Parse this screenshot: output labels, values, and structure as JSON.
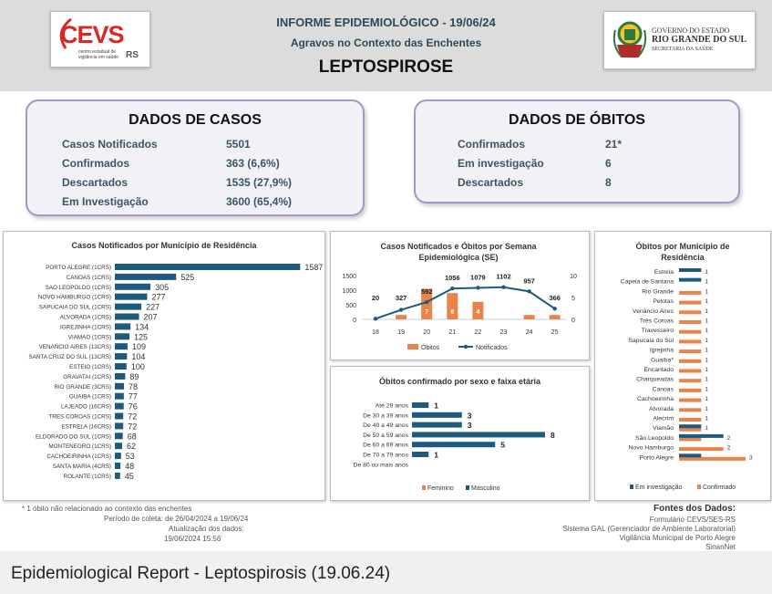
{
  "header": {
    "cevs_logo_text": "CEVS",
    "cevs_logo_sub": "centro estadual de vigilância em saúde",
    "cevs_logo_rs": "RS",
    "title_line1": "INFORME EPIDEMIOLÓGICO -  19/06/24",
    "title_line2": "Agravos no Contexto das Enchentes",
    "title_line3": "LEPTOSPIROSE",
    "rs_logo_line1": "GOVERNO DO ESTADO",
    "rs_logo_line2": "RIO GRANDE DO SUL",
    "rs_logo_line3": "SECRETARIA DA SAÚDE"
  },
  "casos": {
    "title": "DADOS DE CASOS",
    "rows": [
      {
        "label": "Casos Notificados",
        "value": "5501"
      },
      {
        "label": "Confirmados",
        "value": "363 (6,6%)"
      },
      {
        "label": "Descartados",
        "value": "1535 (27,9%)"
      },
      {
        "label": "Em Investigação",
        "value": "3600 (65,4%)"
      }
    ]
  },
  "obitos": {
    "title": "DADOS DE ÓBITOS",
    "rows": [
      {
        "label": "Confirmados",
        "value": "21*"
      },
      {
        "label": "Em investigação",
        "value": "6"
      },
      {
        "label": "Descartados",
        "value": "8"
      }
    ]
  },
  "colors": {
    "navy": "#1d5a7e",
    "orange": "#e8834a",
    "card_border": "#a896c4"
  },
  "chart_data": [
    {
      "type": "bar",
      "title": "Casos Notificados por Município de Residência",
      "orientation": "horizontal",
      "categories": [
        "PORTO ALEGRE (1CRS)",
        "CANOAS (1CRS)",
        "SAO LEOPOLDO (1CRS)",
        "NOVO HAMBURGO (1CRS)",
        "SAPUCAIA DO SUL (1CRS)",
        "ALVORADA (1CRS)",
        "IGREJINHA (1CRS)",
        "VIAMAO (1CRS)",
        "VENANCIO AIRES (13CRS)",
        "SANTA CRUZ DO SUL (13CRS)",
        "ESTEIO (1CRS)",
        "GRAVATAI (1CRS)",
        "RIO GRANDE (3CRS)",
        "GUAIBA (1CRS)",
        "LAJEADO (16CRS)",
        "TRES COROAS (1CRS)",
        "ESTRELA (16CRS)",
        "ELDORADO DO SUL (1CRS)",
        "MONTENEGRO (1CRS)",
        "CACHOEIRINHA (1CRS)",
        "SANTA MARIA (4CRS)",
        "ROLANTE (1CRS)"
      ],
      "values": [
        1587,
        525,
        305,
        277,
        227,
        207,
        134,
        125,
        109,
        104,
        100,
        89,
        78,
        77,
        76,
        72,
        72,
        68,
        62,
        53,
        48,
        45
      ],
      "xlim": [
        0,
        1600
      ]
    },
    {
      "type": "bar",
      "title": "Casos Notificados e Óbitos por Semana Epidemiológica (SE)",
      "categories": [
        "18",
        "19",
        "20",
        "21",
        "22",
        "23",
        "24",
        "25"
      ],
      "series": [
        {
          "name": "Óbitos",
          "kind": "bar",
          "axis": "right",
          "values": [
            0,
            1,
            7,
            6,
            4,
            0,
            1,
            1
          ],
          "labels": [
            "",
            "",
            "7",
            "6",
            "4",
            "",
            "",
            ""
          ]
        },
        {
          "name": "Notificados",
          "kind": "line",
          "axis": "left",
          "values": [
            20,
            327,
            592,
            1056,
            1079,
            1102,
            957,
            366
          ]
        }
      ],
      "ylim_left": [
        0,
        1500
      ],
      "yticks_left": [
        "0",
        "500",
        "1000",
        "1500"
      ],
      "ylim_right": [
        0,
        10
      ],
      "yticks_right": [
        "0",
        "5",
        "10"
      ]
    },
    {
      "type": "bar",
      "title": "Óbitos confirmado por sexo e faixa etária",
      "orientation": "horizontal",
      "categories": [
        "Até 29 anos",
        "De 30 a 39 anos",
        "De 40 a 49 anos",
        "De 50 a 59 anos",
        "De 60 a 69 anos",
        "De 70 a 79 anos",
        "De 80 ou mais anos"
      ],
      "series": [
        {
          "name": "Feminino",
          "values": [
            0,
            0,
            0,
            0,
            0,
            0,
            0
          ]
        },
        {
          "name": "Masculino",
          "values": [
            1,
            3,
            3,
            8,
            5,
            1,
            0
          ]
        }
      ],
      "labels": [
        "1",
        "3",
        "3",
        "8",
        "5",
        "1",
        ""
      ],
      "xlim": [
        0,
        8
      ]
    },
    {
      "type": "bar",
      "title": "Óbitos por Município de Residência",
      "orientation": "horizontal",
      "categories": [
        "Estrela",
        "Capela de Santana",
        "Rio Grande",
        "Pelotas",
        "Venâncio Aires",
        "Três Coroas",
        "Travesseiro",
        "Sapucaia do Sul",
        "Igrejinha",
        "Guaíba*",
        "Encantado",
        "Charqueadas",
        "Canoas",
        "Cachoeirinha",
        "Alvorada",
        "Alecrim",
        "Viamão",
        "São Leopoldo",
        "Novo Hamburgo",
        "Porto Alegre"
      ],
      "series": [
        {
          "name": "Em investigação",
          "values": [
            1,
            1,
            0,
            0,
            0,
            0,
            0,
            0,
            0,
            0,
            0,
            0,
            0,
            0,
            0,
            0,
            1,
            2,
            0,
            1
          ]
        },
        {
          "name": "Confirmado",
          "values": [
            0,
            0,
            1,
            1,
            1,
            1,
            1,
            1,
            1,
            1,
            1,
            1,
            1,
            1,
            1,
            1,
            1,
            1,
            2,
            3
          ]
        }
      ],
      "labels": [
        "1",
        "1",
        "1",
        "1",
        "1",
        "1",
        "1",
        "1",
        "1",
        "1",
        "1",
        "1",
        "1",
        "1",
        "1",
        "1",
        "1",
        "2",
        "2",
        "3"
      ],
      "xlim": [
        0,
        3
      ]
    }
  ],
  "footer": {
    "note": "* 1 óbito não relacionado ao contexto das enchentes",
    "period": "Período de coleta: de 26/04/2024 a 19/06/24",
    "updated_label": "Atualização dos dados:",
    "updated_value": "19/06/2024 15:56",
    "sources_title": "Fontes dos Dados:",
    "sources": [
      "Formulário CEVS/SES-RS",
      "Sistema GAL (Gerenciador de Ambiente Laboratorial)",
      "Vigilância Municipal de Porto Alegre",
      "SinanNet"
    ]
  },
  "caption": "Epidemiological Report - Leptospirosis (19.06.24)"
}
